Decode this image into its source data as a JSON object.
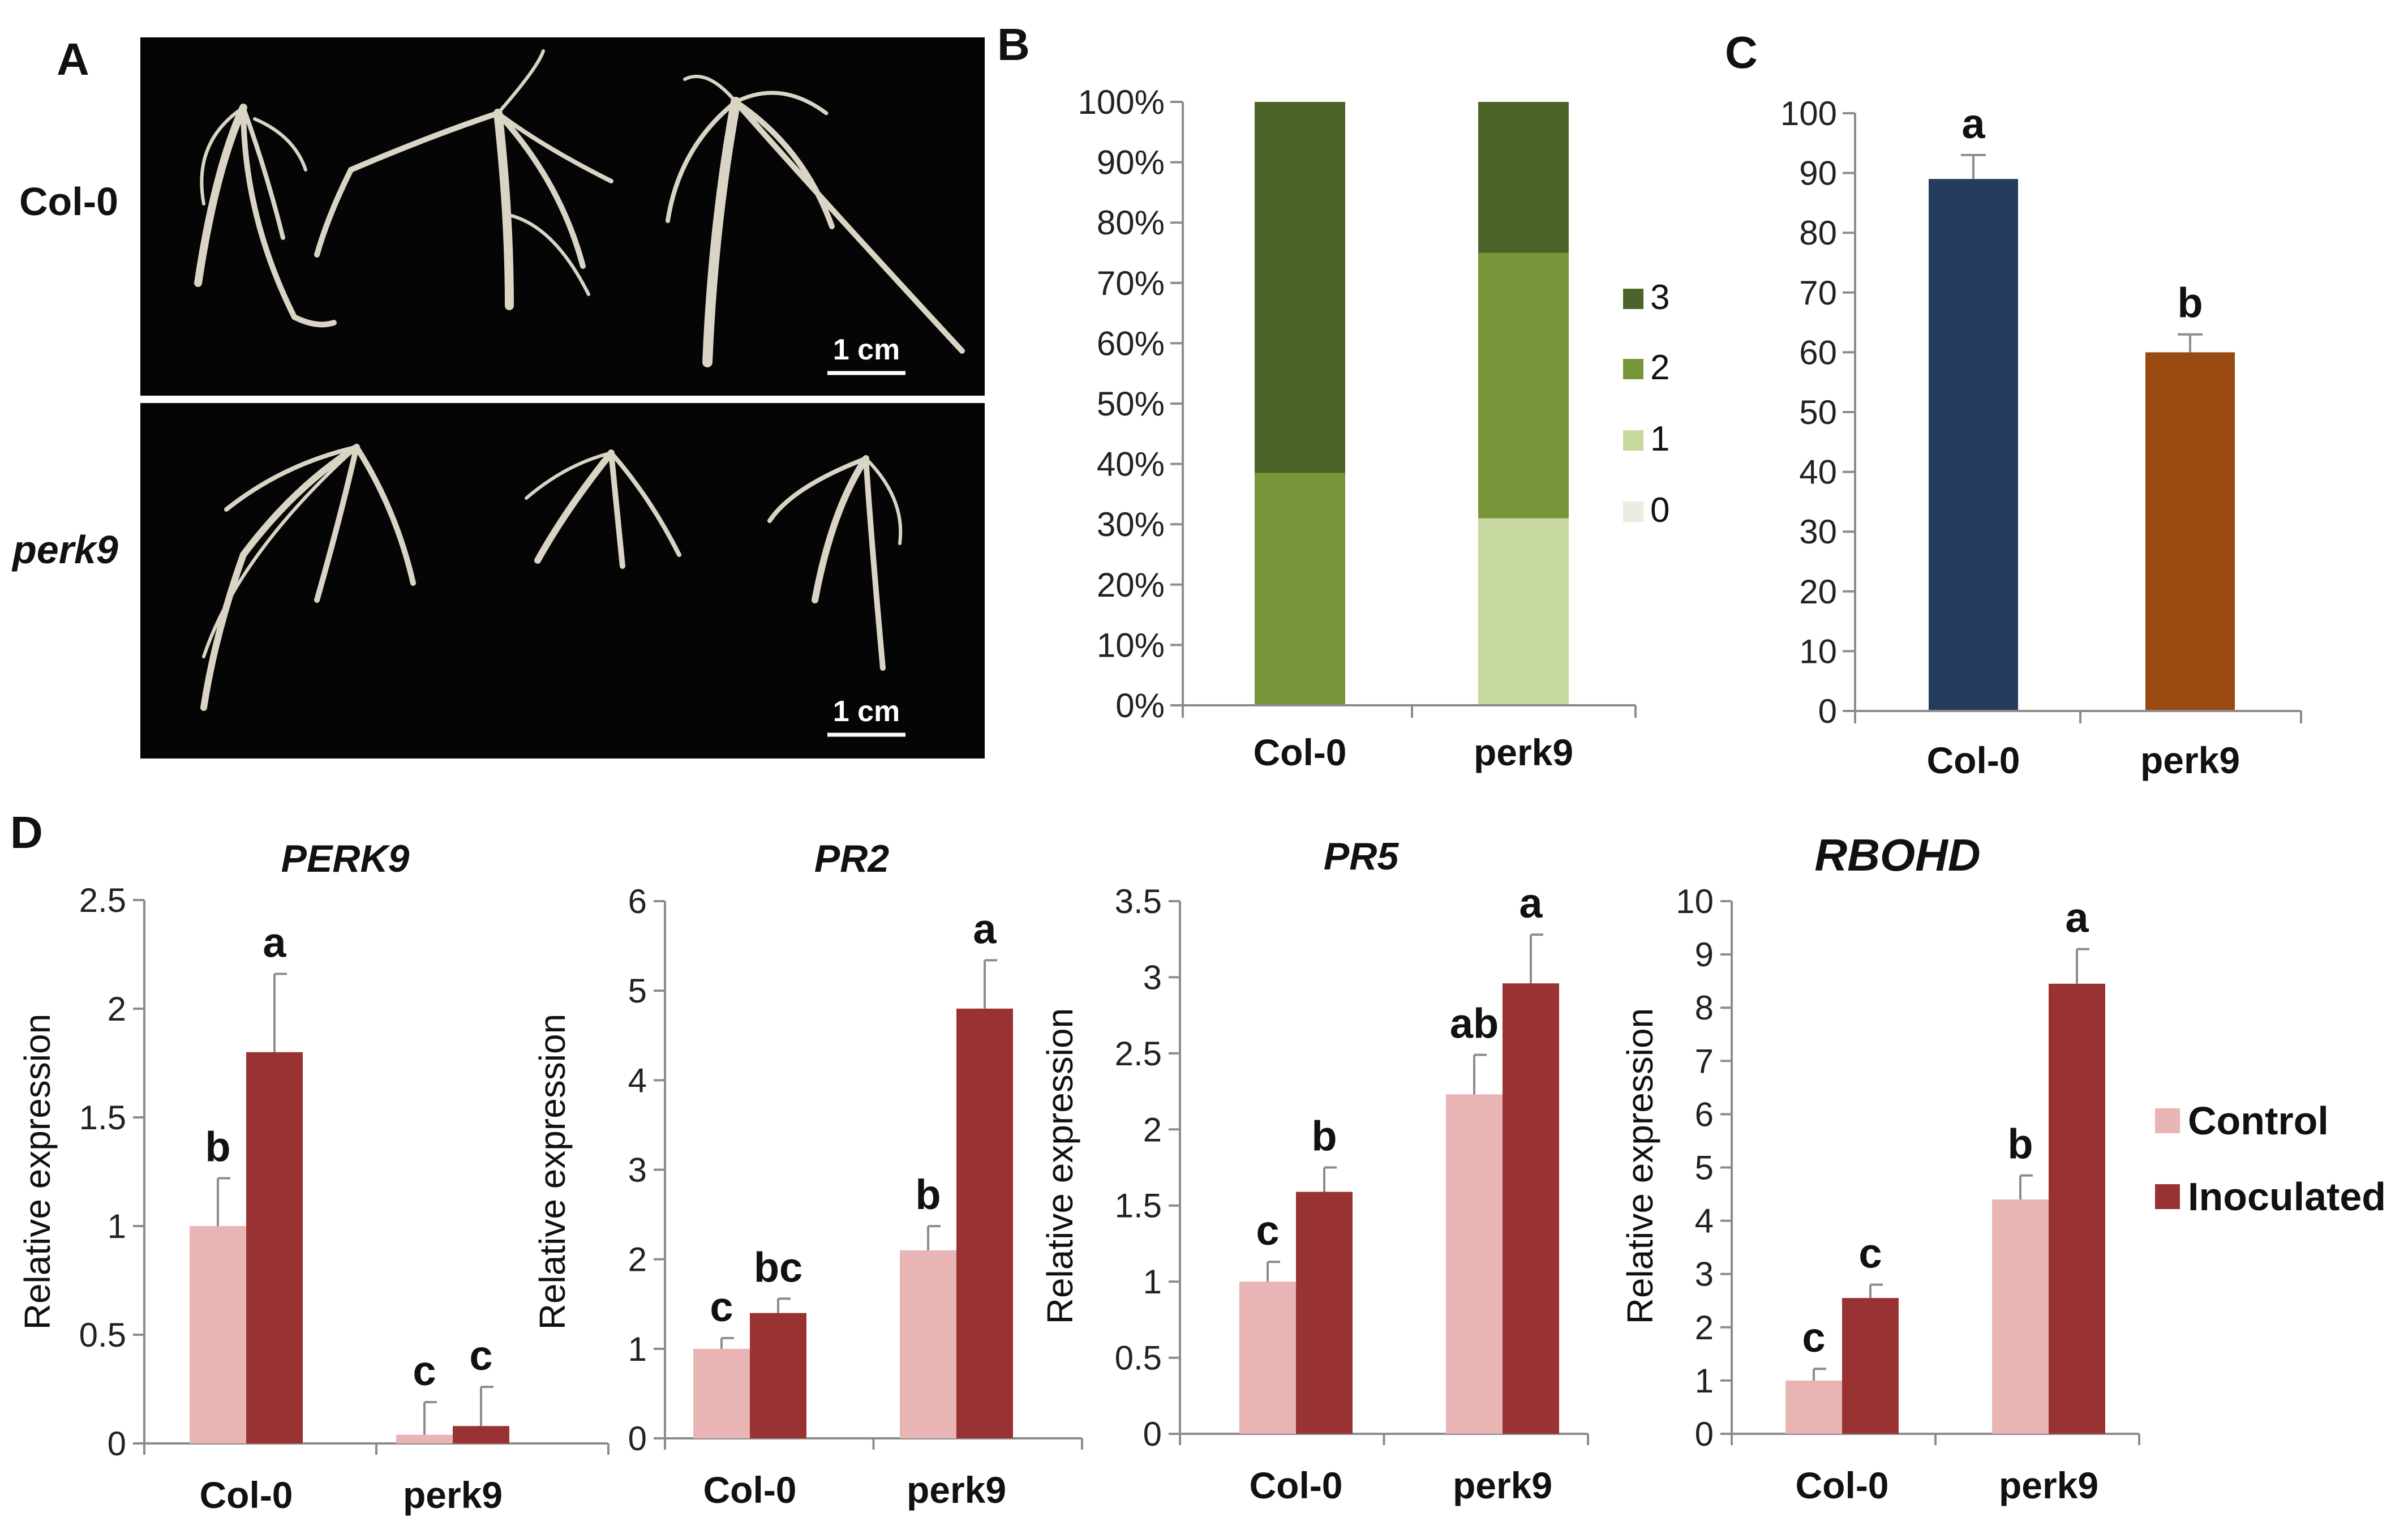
{
  "panel_labels": {
    "a": "A",
    "b": "B",
    "c": "C",
    "d": "D"
  },
  "photo": {
    "rows": [
      {
        "label": "Col-0",
        "italic": false,
        "scale": "1 cm"
      },
      {
        "label": "perk9",
        "italic": true,
        "scale": "1 cm"
      }
    ]
  },
  "colors": {
    "score3": "#4d6428",
    "score2": "#779639",
    "score1": "#c6d89e",
    "score0": "#ecebe1",
    "col0": "#243d5e",
    "perk9": "#994a10",
    "control": "#e8b4b4",
    "inoculated": "#993333"
  },
  "chart_data": [
    {
      "id": "B",
      "type": "bar",
      "stacked": true,
      "categories": [
        "Col-0",
        "perk9"
      ],
      "series": [
        {
          "name": "0",
          "values": [
            0,
            0
          ]
        },
        {
          "name": "1",
          "values": [
            0,
            31
          ]
        },
        {
          "name": "2",
          "values": [
            38.5,
            44
          ]
        },
        {
          "name": "3",
          "values": [
            61.5,
            25
          ]
        }
      ],
      "ylim": [
        0,
        100
      ],
      "yticks": [
        "0%",
        "10%",
        "20%",
        "30%",
        "40%",
        "50%",
        "60%",
        "70%",
        "80%",
        "90%",
        "100%"
      ],
      "legend": [
        "3",
        "2",
        "1",
        "0"
      ],
      "legend_position": "right"
    },
    {
      "id": "C",
      "type": "bar",
      "categories": [
        "Col-0",
        "perk9"
      ],
      "values": [
        89,
        60
      ],
      "errors": [
        4,
        3
      ],
      "letters": [
        "a",
        "b"
      ],
      "ylim": [
        0,
        100
      ],
      "yticks": [
        "0",
        "10",
        "20",
        "30",
        "40",
        "50",
        "60",
        "70",
        "80",
        "90",
        "100"
      ]
    },
    {
      "id": "D1",
      "type": "bar",
      "title": "PERK9",
      "ylabel": "Relative expression",
      "categories": [
        "Col-0",
        "perk9"
      ],
      "series": [
        {
          "name": "Control",
          "values": [
            1.0,
            0.04
          ],
          "errors": [
            0.22,
            0.15
          ],
          "letters": [
            "b",
            "c"
          ]
        },
        {
          "name": "Inoculated",
          "values": [
            1.8,
            0.08
          ],
          "errors": [
            0.36,
            0.18
          ],
          "letters": [
            "a",
            "c"
          ]
        }
      ],
      "ylim": [
        0,
        2.5
      ],
      "yticks": [
        "0",
        "0.5",
        "1",
        "1.5",
        "2",
        "2.5"
      ]
    },
    {
      "id": "D2",
      "type": "bar",
      "title": "PR2",
      "ylabel": "Relative expression",
      "categories": [
        "Col-0",
        "perk9"
      ],
      "series": [
        {
          "name": "Control",
          "values": [
            1.0,
            2.1
          ],
          "errors": [
            0.12,
            0.27
          ],
          "letters": [
            "c",
            "b"
          ]
        },
        {
          "name": "Inoculated",
          "values": [
            1.4,
            4.8
          ],
          "errors": [
            0.16,
            0.54
          ],
          "letters": [
            "bc",
            "a"
          ]
        }
      ],
      "ylim": [
        0,
        6
      ],
      "yticks": [
        "0",
        "1",
        "2",
        "3",
        "4",
        "5",
        "6"
      ]
    },
    {
      "id": "D3",
      "type": "bar",
      "title": "PR5",
      "ylabel": "Relative expression",
      "categories": [
        "Col-0",
        "perk9"
      ],
      "series": [
        {
          "name": "Control",
          "values": [
            1.0,
            2.23
          ],
          "errors": [
            0.13,
            0.26
          ],
          "letters": [
            "c",
            "ab"
          ]
        },
        {
          "name": "Inoculated",
          "values": [
            1.59,
            2.96
          ],
          "errors": [
            0.16,
            0.32
          ],
          "letters": [
            "b",
            "a"
          ]
        }
      ],
      "ylim": [
        0,
        3.5
      ],
      "yticks": [
        "0",
        "0.5",
        "1",
        "1.5",
        "2",
        "2.5",
        "3",
        "3.5"
      ]
    },
    {
      "id": "D4",
      "type": "bar",
      "title": "RBOHD",
      "ylabel": "Relative expression",
      "categories": [
        "Col-0",
        "perk9"
      ],
      "series": [
        {
          "name": "Control",
          "values": [
            1.0,
            4.4
          ],
          "errors": [
            0.22,
            0.45
          ],
          "letters": [
            "c",
            "b"
          ]
        },
        {
          "name": "Inoculated",
          "values": [
            2.55,
            8.45
          ],
          "errors": [
            0.25,
            0.65
          ],
          "letters": [
            "c",
            "a"
          ]
        }
      ],
      "ylim": [
        0,
        10
      ],
      "yticks": [
        "0",
        "1",
        "2",
        "3",
        "4",
        "5",
        "6",
        "7",
        "8",
        "9",
        "10"
      ]
    }
  ],
  "legend_d": [
    "Control",
    "Inoculated"
  ]
}
